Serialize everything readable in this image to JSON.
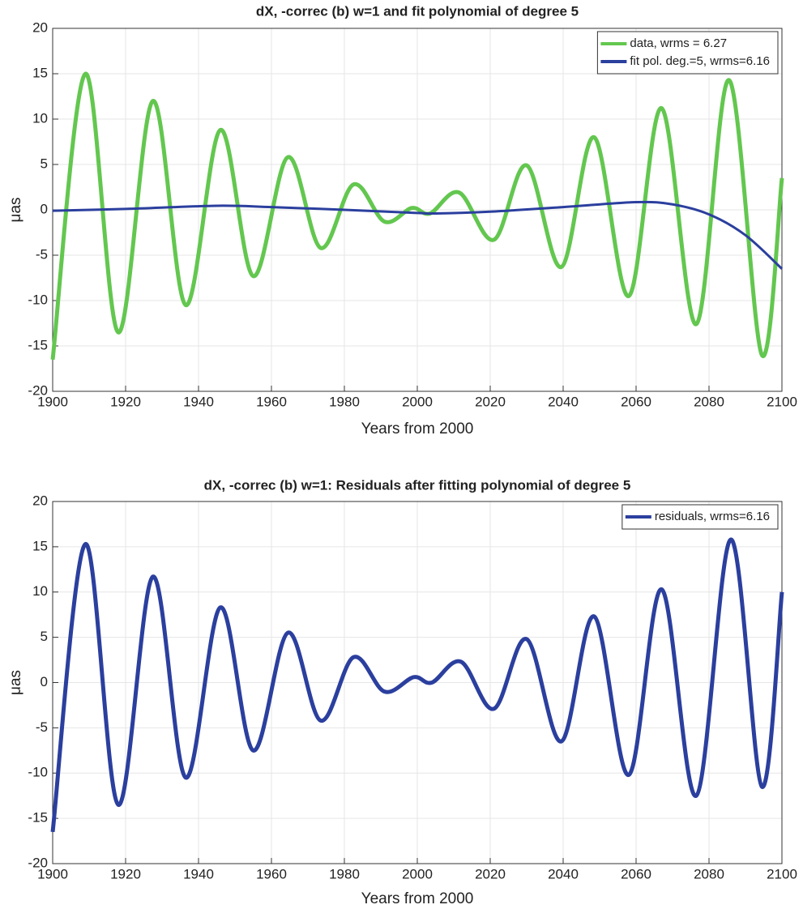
{
  "chart_data": [
    {
      "type": "line",
      "title": "dX, -correc (b) w=1 and fit polynomial of degree 5",
      "xlabel": "Years from 2000",
      "ylabel": "μas",
      "xlim": [
        1900,
        2100
      ],
      "xticks": [
        1900,
        1920,
        1940,
        1960,
        1980,
        2000,
        2020,
        2040,
        2060,
        2080,
        2100
      ],
      "ylim": [
        -20,
        20
      ],
      "yticks": [
        -20,
        -15,
        -10,
        -5,
        0,
        5,
        10,
        15,
        20
      ],
      "grid": true,
      "legend": "northeast",
      "series": [
        {
          "name": "data, wrms = 6.27",
          "color": "#63c74f",
          "x": [
            1900,
            1909,
            1918,
            1927.5,
            1936.5,
            1946,
            1955,
            1964.5,
            1973.5,
            1982.5,
            1991,
            1998.5,
            2003.5,
            2011.5,
            2021,
            2030,
            2039.5,
            2048.5,
            2058,
            2067,
            2076.5,
            2085.5,
            2094.5,
            2100
          ],
          "values": [
            -16.5,
            15,
            -13.5,
            12,
            -10.5,
            8.8,
            -7.3,
            5.8,
            -4.2,
            2.8,
            -1.3,
            0.2,
            -0.4,
            1.9,
            -3.3,
            4.9,
            -6.3,
            8,
            -9.5,
            11.2,
            -12.6,
            14.3,
            -16,
            3.5
          ]
        },
        {
          "name": "fit pol. deg.=5, wrms=6.16",
          "color": "#2b3f9e",
          "x": [
            1900,
            1920,
            1945,
            1960,
            1980,
            2000,
            2005,
            2020,
            2040,
            2060,
            2070,
            2080,
            2090,
            2100
          ],
          "values": [
            -0.1,
            0.1,
            0.45,
            0.3,
            0,
            -0.35,
            -0.4,
            -0.2,
            0.3,
            0.85,
            0.6,
            -0.5,
            -2.8,
            -6.5
          ]
        }
      ]
    },
    {
      "type": "line",
      "title": "dX, -correc (b) w=1: Residuals after fitting polynomial of degree 5",
      "xlabel": "Years from 2000",
      "ylabel": "μas",
      "xlim": [
        1900,
        2100
      ],
      "xticks": [
        1900,
        1920,
        1940,
        1960,
        1980,
        2000,
        2020,
        2040,
        2060,
        2080,
        2100
      ],
      "ylim": [
        -20,
        20
      ],
      "yticks": [
        -20,
        -15,
        -10,
        -5,
        0,
        5,
        10,
        15,
        20
      ],
      "grid": true,
      "legend": "northeast",
      "series": [
        {
          "name": "residuals, wrms=6.16",
          "color": "#2b3f9e",
          "x": [
            1900,
            1909,
            1918,
            1927.5,
            1936.5,
            1946,
            1955,
            1964.5,
            1973.5,
            1982.5,
            1991,
            1999,
            2004,
            2012,
            2021,
            2030,
            2039.5,
            2048.5,
            2058,
            2067,
            2076.5,
            2086,
            2094.5,
            2100
          ],
          "values": [
            -16.5,
            15.3,
            -13.5,
            11.7,
            -10.5,
            8.3,
            -7.5,
            5.5,
            -4.2,
            2.8,
            -1,
            0.6,
            0,
            2.3,
            -2.9,
            4.8,
            -6.5,
            7.3,
            -10.2,
            10.3,
            -12.5,
            15.8,
            -11.5,
            10
          ]
        }
      ]
    }
  ]
}
